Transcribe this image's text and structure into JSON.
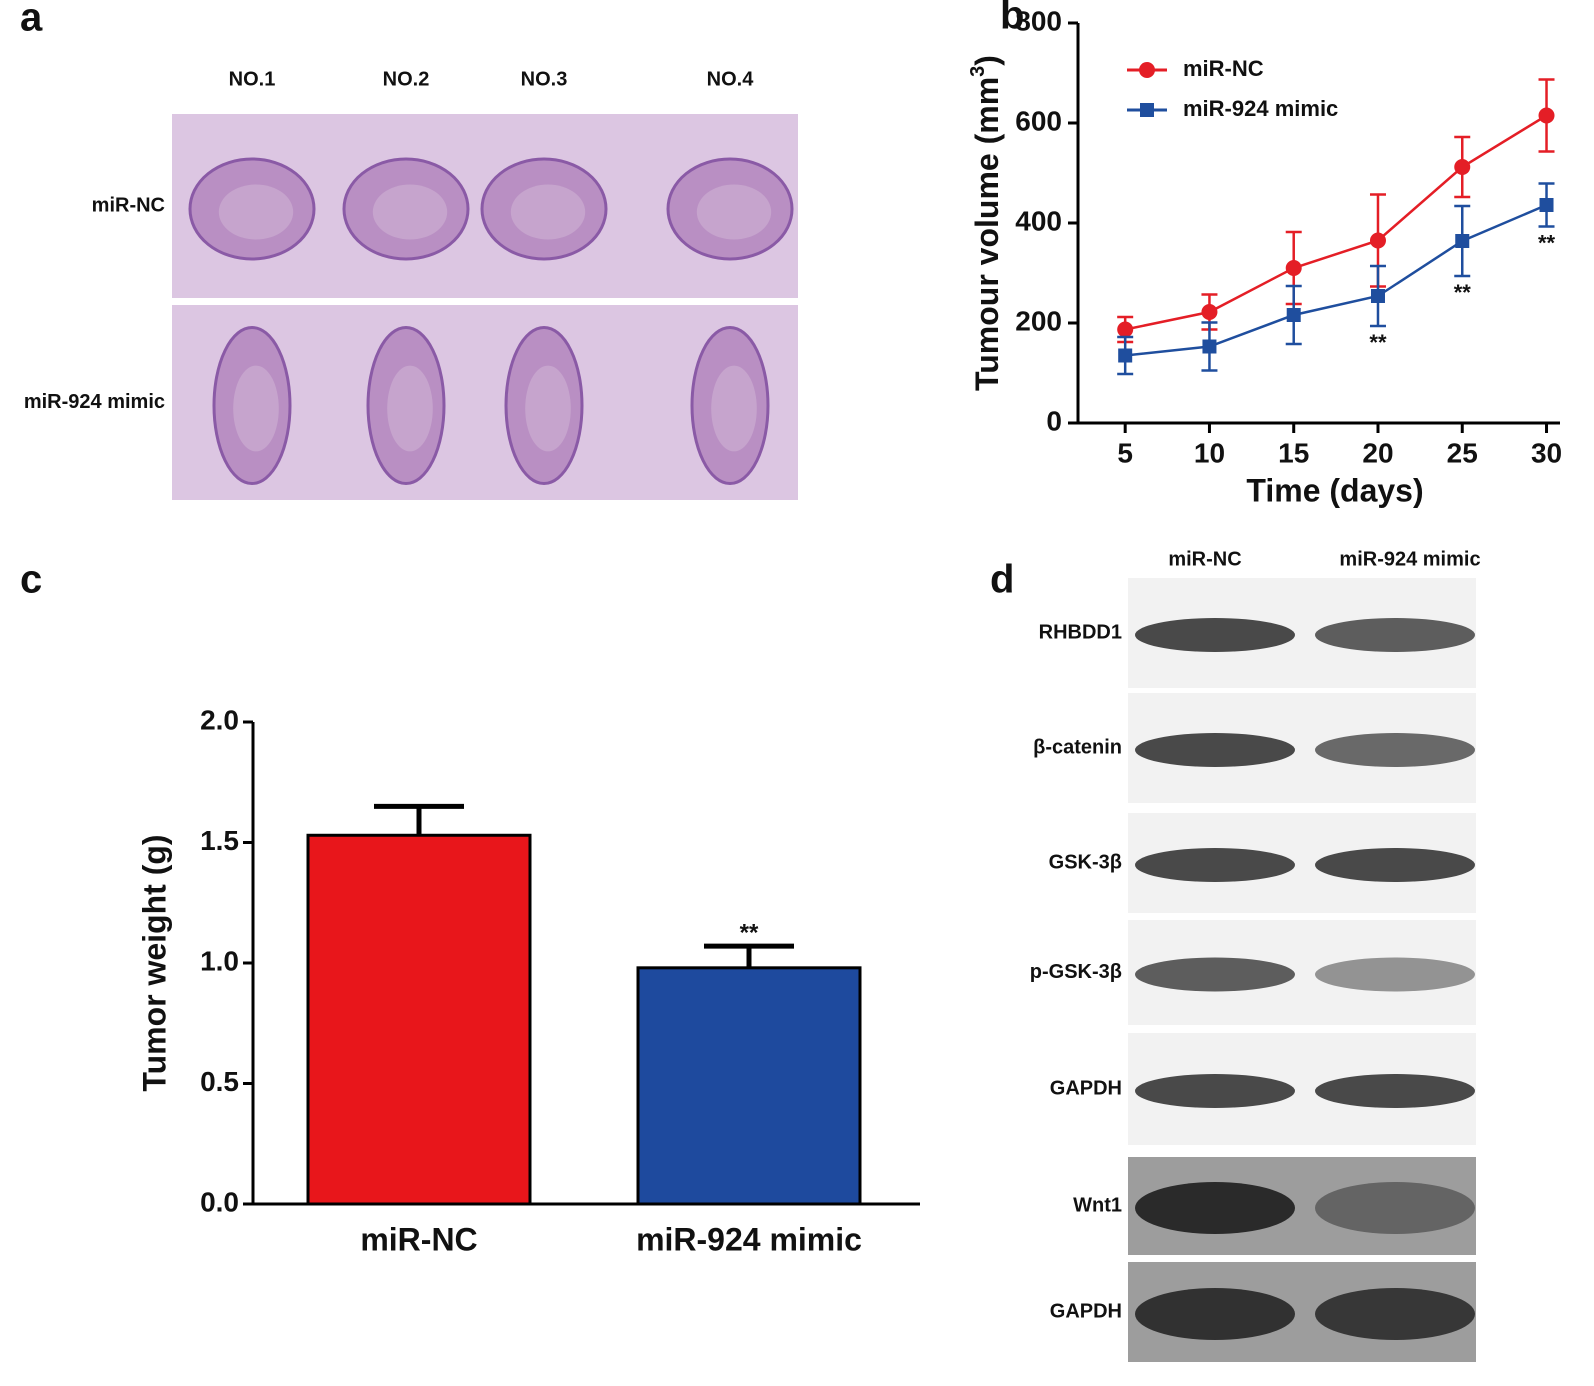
{
  "panel_labels": [
    "a",
    "b",
    "c",
    "d"
  ],
  "panel_a": {
    "columns": [
      "NO.1",
      "NO.2",
      "NO.3",
      "NO.4"
    ],
    "rows": [
      "miR-NC",
      "miR-924 mimic"
    ]
  },
  "chart_data": [
    {
      "type": "line",
      "x_label": "Time (days)",
      "y_label": [
        "Tumour volume (mm",
        "3",
        ")"
      ],
      "x": [
        5,
        10,
        15,
        20,
        25,
        30
      ],
      "series": [
        {
          "name": "miR-NC",
          "color": "#e41e26",
          "marker": "circle",
          "values": [
            187,
            222,
            310,
            365,
            512,
            615
          ],
          "errors": [
            25,
            35,
            72,
            92,
            60,
            72
          ]
        },
        {
          "name": "miR-924 mimic",
          "color": "#1f4e9e",
          "marker": "square",
          "values": [
            135,
            153,
            216,
            254,
            364,
            436
          ],
          "errors": [
            37,
            48,
            58,
            60,
            70,
            43
          ],
          "significance": [
            null,
            null,
            null,
            "**",
            "**",
            "**"
          ]
        }
      ],
      "xlim": [
        2.2,
        30.8
      ],
      "xticks": [
        5,
        10,
        15,
        20,
        25,
        30
      ],
      "ylim": [
        0,
        800
      ],
      "yticks": [
        0,
        200,
        400,
        600,
        800
      ]
    },
    {
      "type": "bar",
      "y_label": "Tumor weight (g)",
      "categories": [
        "miR-NC",
        "miR-924 mimic"
      ],
      "values": [
        1.53,
        0.98
      ],
      "errors": [
        0.12,
        0.09
      ],
      "colors": [
        "#e8161b",
        "#1e4a9e"
      ],
      "significance": [
        null,
        "**"
      ],
      "ylim": [
        0,
        2
      ],
      "yticks": [
        {
          "value": 0,
          "label": "0.0"
        },
        {
          "value": 0.5,
          "label": "0.5"
        },
        {
          "value": 1,
          "label": "1.0"
        },
        {
          "value": 1.5,
          "label": "1.5"
        },
        {
          "value": 2,
          "label": "2.0"
        }
      ]
    }
  ],
  "panel_d": {
    "columns": [
      "miR-NC",
      "miR-924 mimic"
    ],
    "rows": [
      "RHBDD1",
      "β-catenin",
      "GSK-3β",
      "p-GSK-3β",
      "GAPDH",
      "Wnt1",
      "GAPDH"
    ]
  }
}
